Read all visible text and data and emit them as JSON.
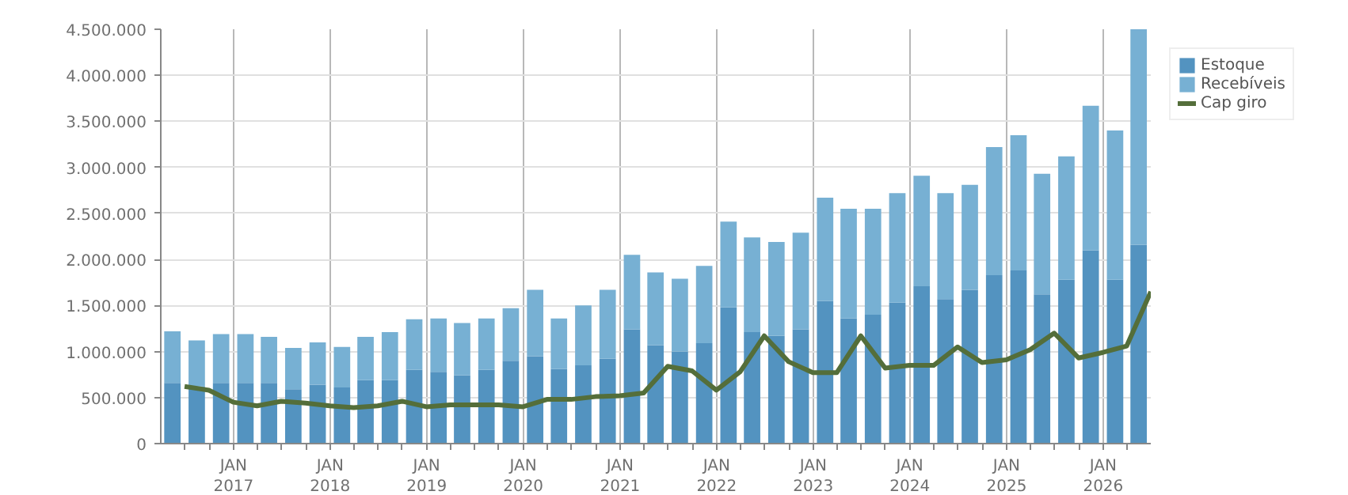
{
  "chart_data": {
    "type": "bar",
    "stacked": true,
    "x": [
      "2016-05-15",
      "2016-08-15",
      "2016-11-15",
      "2017-02-15",
      "2017-05-15",
      "2017-08-15",
      "2017-11-15",
      "2018-02-15",
      "2018-05-15",
      "2018-08-15",
      "2018-11-15",
      "2019-02-15",
      "2019-05-15",
      "2019-08-15",
      "2019-11-15",
      "2020-02-15",
      "2020-05-15",
      "2020-08-15",
      "2020-11-15",
      "2021-02-15",
      "2021-05-15",
      "2021-08-15",
      "2021-11-15",
      "2022-02-15",
      "2022-05-15",
      "2022-08-15",
      "2022-11-15",
      "2023-02-15",
      "2023-05-15",
      "2023-08-15",
      "2023-11-15",
      "2024-02-15",
      "2024-05-15",
      "2024-08-15",
      "2024-11-15",
      "2025-02-15",
      "2025-05-15",
      "2025-08-15",
      "2025-11-15",
      "2026-02-15",
      "2026-05-15"
    ],
    "series": [
      {
        "name": "Estoque",
        "color": "#5393c0",
        "values": [
          660000,
          620000,
          660000,
          660000,
          660000,
          590000,
          640000,
          610000,
          690000,
          690000,
          800000,
          780000,
          740000,
          800000,
          900000,
          950000,
          810000,
          850000,
          920000,
          1240000,
          1070000,
          1000000,
          1090000,
          1480000,
          1210000,
          1170000,
          1240000,
          1550000,
          1360000,
          1400000,
          1530000,
          1710000,
          1570000,
          1670000,
          1830000,
          1880000,
          1620000,
          1780000,
          2100000,
          1780000,
          2160000
        ]
      },
      {
        "name": "Recebíveis",
        "color": "#77b0d3",
        "values": [
          560000,
          500000,
          530000,
          530000,
          500000,
          450000,
          460000,
          440000,
          470000,
          520000,
          550000,
          580000,
          570000,
          560000,
          570000,
          720000,
          550000,
          650000,
          750000,
          810000,
          790000,
          790000,
          840000,
          930000,
          1030000,
          1020000,
          1050000,
          1120000,
          1190000,
          1150000,
          1190000,
          1200000,
          1150000,
          1140000,
          1390000,
          1470000,
          1310000,
          1340000,
          1570000,
          1620000,
          2340000
        ]
      },
      {
        "name": "Cap giro",
        "type": "line",
        "color": "#546e3a",
        "x": [
          "2016-06-30",
          "2016-09-30",
          "2016-12-31",
          "2017-03-31",
          "2017-06-30",
          "2017-09-30",
          "2017-12-31",
          "2018-03-31",
          "2018-06-30",
          "2018-09-30",
          "2018-12-31",
          "2019-03-31",
          "2019-06-30",
          "2019-09-30",
          "2019-12-31",
          "2020-03-31",
          "2020-06-30",
          "2020-09-30",
          "2020-12-31",
          "2021-03-31",
          "2021-06-30",
          "2021-09-30",
          "2021-12-31",
          "2022-03-31",
          "2022-06-30",
          "2022-09-30",
          "2022-12-31",
          "2023-03-31",
          "2023-06-30",
          "2023-09-30",
          "2023-12-31",
          "2024-03-31",
          "2024-06-30",
          "2024-09-30",
          "2024-12-31",
          "2025-03-31",
          "2025-06-30",
          "2025-09-30",
          "2025-12-31",
          "2026-03-31",
          "2026-06-30"
        ],
        "values": [
          620000,
          580000,
          450000,
          410000,
          460000,
          440000,
          410000,
          390000,
          410000,
          460000,
          400000,
          420000,
          420000,
          420000,
          400000,
          480000,
          480000,
          510000,
          520000,
          550000,
          840000,
          790000,
          580000,
          780000,
          1170000,
          890000,
          770000,
          770000,
          1170000,
          820000,
          850000,
          850000,
          1050000,
          880000,
          910000,
          1020000,
          1200000,
          930000,
          990000,
          1060000,
          1650000
        ]
      }
    ],
    "xlim": [
      "2016-04-01",
      "2026-06-30"
    ],
    "xticks": [
      {
        "value": "2016-07-01",
        "label": null
      },
      {
        "value": "2016-10-01",
        "label": null
      },
      {
        "value": "2017-01-01",
        "label": "JAN\n2017"
      },
      {
        "value": "2017-04-01",
        "label": null
      },
      {
        "value": "2017-07-01",
        "label": null
      },
      {
        "value": "2017-10-01",
        "label": null
      },
      {
        "value": "2018-01-01",
        "label": "JAN\n2018"
      },
      {
        "value": "2018-04-01",
        "label": null
      },
      {
        "value": "2018-07-01",
        "label": null
      },
      {
        "value": "2018-10-01",
        "label": null
      },
      {
        "value": "2019-01-01",
        "label": "JAN\n2019"
      },
      {
        "value": "2019-04-01",
        "label": null
      },
      {
        "value": "2019-07-01",
        "label": null
      },
      {
        "value": "2019-10-01",
        "label": null
      },
      {
        "value": "2020-01-01",
        "label": "JAN\n2020"
      },
      {
        "value": "2020-04-01",
        "label": null
      },
      {
        "value": "2020-07-01",
        "label": null
      },
      {
        "value": "2020-10-01",
        "label": null
      },
      {
        "value": "2021-01-01",
        "label": "JAN\n2021"
      },
      {
        "value": "2021-04-01",
        "label": null
      },
      {
        "value": "2021-07-01",
        "label": null
      },
      {
        "value": "2021-10-01",
        "label": null
      },
      {
        "value": "2022-01-01",
        "label": "JAN\n2022"
      },
      {
        "value": "2022-04-01",
        "label": null
      },
      {
        "value": "2022-07-01",
        "label": null
      },
      {
        "value": "2022-10-01",
        "label": null
      },
      {
        "value": "2023-01-01",
        "label": "JAN\n2023"
      },
      {
        "value": "2023-04-01",
        "label": null
      },
      {
        "value": "2023-07-01",
        "label": null
      },
      {
        "value": "2023-10-01",
        "label": null
      },
      {
        "value": "2024-01-01",
        "label": "JAN\n2024"
      },
      {
        "value": "2024-04-01",
        "label": null
      },
      {
        "value": "2024-07-01",
        "label": null
      },
      {
        "value": "2024-10-01",
        "label": null
      },
      {
        "value": "2025-01-01",
        "label": "JAN\n2025"
      },
      {
        "value": "2025-04-01",
        "label": null
      },
      {
        "value": "2025-07-01",
        "label": null
      },
      {
        "value": "2025-10-01",
        "label": null
      },
      {
        "value": "2026-01-01",
        "label": "JAN\n2026"
      },
      {
        "value": "2026-04-01",
        "label": null
      }
    ],
    "ylim": [
      0,
      4500000
    ],
    "yticks": [
      {
        "value": 0,
        "label": "0"
      },
      {
        "value": 500000,
        "label": "500.000"
      },
      {
        "value": 1000000,
        "label": "1.000.000"
      },
      {
        "value": 1500000,
        "label": "1.500.000"
      },
      {
        "value": 2000000,
        "label": "2.000.000"
      },
      {
        "value": 2500000,
        "label": "2.500.000"
      },
      {
        "value": 3000000,
        "label": "3.000.000"
      },
      {
        "value": 3500000,
        "label": "3.500.000"
      },
      {
        "value": 4000000,
        "label": "4.000.000"
      },
      {
        "value": 4500000,
        "label": "4.500.000"
      }
    ],
    "grid": true,
    "legend": "top right",
    "marker": "none",
    "line_style": "solid"
  }
}
